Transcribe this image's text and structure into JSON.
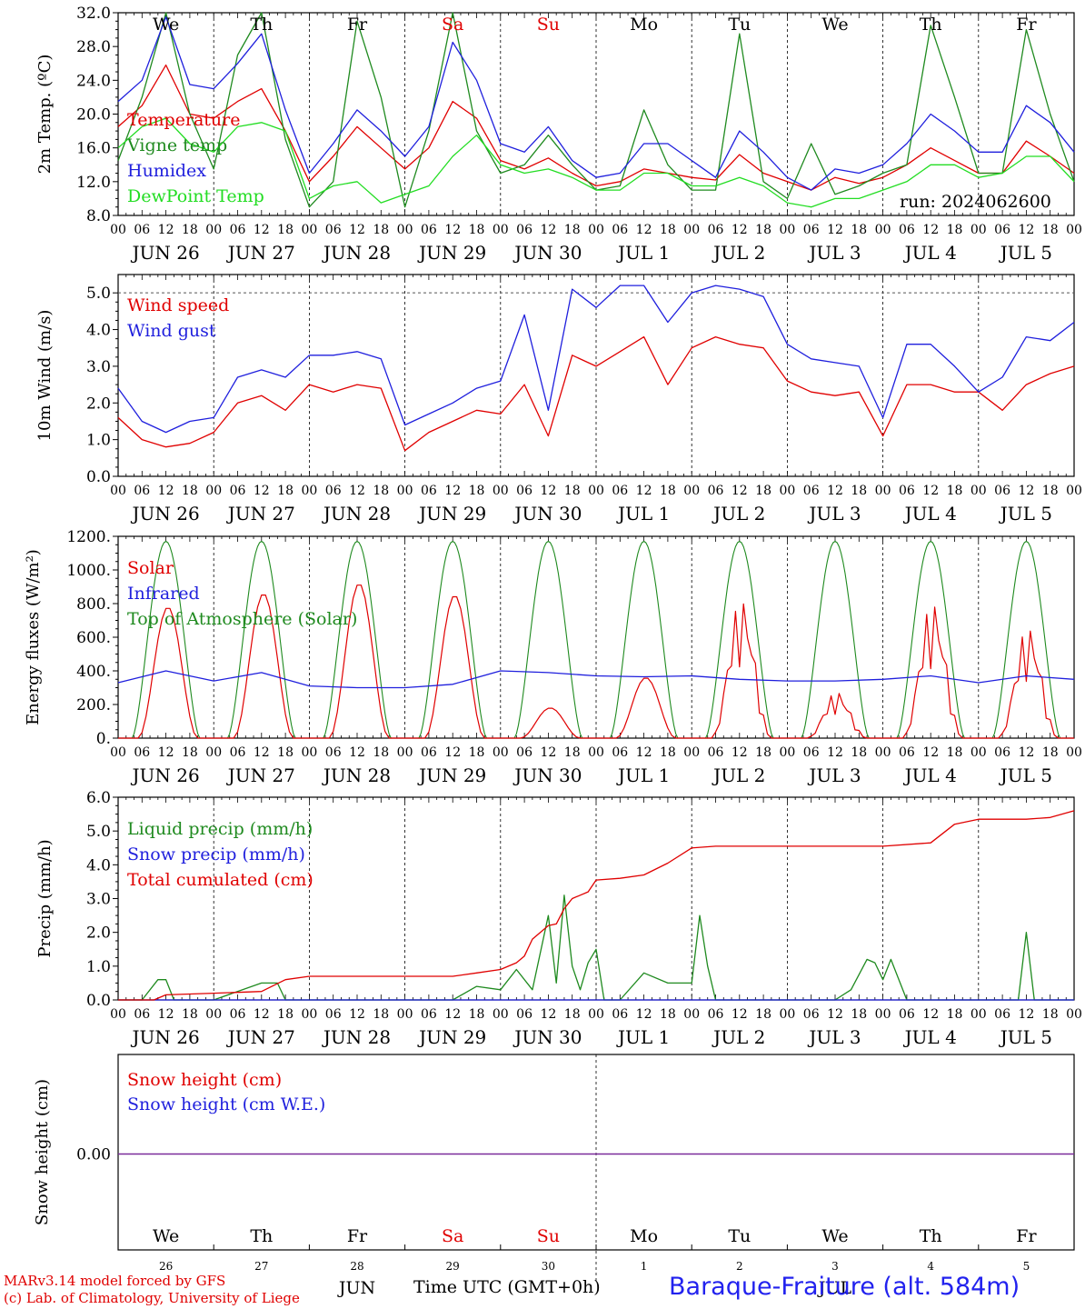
{
  "run_label": "run: 2024062600",
  "station_label": "Baraque-Fraiture (alt. 584m)",
  "x_axis_label": "Time UTC (GMT+0h)",
  "credit_line_1": "MARv3.14 model forced by GFS",
  "credit_line_2": "(c) Lab. of Climatology, University of Liege",
  "weekdays": [
    {
      "label": "We",
      "color": "#000000"
    },
    {
      "label": "Th",
      "color": "#000000"
    },
    {
      "label": "Fr",
      "color": "#000000"
    },
    {
      "label": "Sa",
      "color": "#e00000"
    },
    {
      "label": "Su",
      "color": "#e00000"
    },
    {
      "label": "Mo",
      "color": "#000000"
    },
    {
      "label": "Tu",
      "color": "#000000"
    },
    {
      "label": "We",
      "color": "#000000"
    },
    {
      "label": "Th",
      "color": "#000000"
    },
    {
      "label": "Fr",
      "color": "#000000"
    }
  ],
  "date_labels": [
    "JUN 26",
    "JUN 27",
    "JUN 28",
    "JUN 29",
    "JUN 30",
    "JUL  1",
    "JUL  2",
    "JUL  3",
    "JUL  4",
    "JUL  5"
  ],
  "hour_ticks": [
    "00",
    "06",
    "12",
    "18"
  ],
  "day_numbers": [
    "26",
    "27",
    "28",
    "29",
    "30",
    "1",
    "2",
    "3",
    "4",
    "5"
  ],
  "month_labels": [
    "JUN",
    "JUL"
  ],
  "colors": {
    "red": "#e00000",
    "green": "#1f8a1f",
    "blue": "#1f1fdd",
    "lightgreen": "#22dd22",
    "purple": "#7a2a9a"
  },
  "chart_data": [
    {
      "type": "line",
      "ylabel": "2m Temp. (ºC)",
      "ylim": [
        8,
        32
      ],
      "yticks": [
        "8.0",
        "12.0",
        "16.0",
        "20.0",
        "24.0",
        "28.0",
        "32.0"
      ],
      "x_unit": "hours since 2024-06-26 00 UTC",
      "series": [
        {
          "name": "Temperature",
          "color": "red",
          "x": [
            0,
            6,
            12,
            18,
            24,
            30,
            36,
            42,
            48,
            54,
            60,
            66,
            72,
            78,
            84,
            90,
            96,
            102,
            108,
            114,
            120,
            126,
            132,
            138,
            144,
            150,
            156,
            162,
            168,
            174,
            180,
            186,
            192,
            198,
            204,
            210,
            216,
            222,
            228,
            234,
            240
          ],
          "values": [
            18.5,
            21,
            25.8,
            20,
            19.5,
            21.5,
            23,
            18,
            12,
            15,
            18.5,
            16,
            13.5,
            16,
            21.5,
            19.5,
            14.5,
            13.5,
            14.8,
            13,
            11.5,
            12,
            13.5,
            13,
            12.5,
            12.2,
            15.2,
            13,
            12,
            11,
            12.5,
            11.8,
            12.5,
            14,
            16,
            14.5,
            13,
            13,
            16.8,
            15,
            13
          ]
        },
        {
          "name": "Vigne temp",
          "color": "green",
          "x": [
            0,
            6,
            12,
            18,
            24,
            30,
            36,
            42,
            48,
            54,
            60,
            66,
            72,
            78,
            84,
            90,
            96,
            102,
            108,
            114,
            120,
            126,
            132,
            138,
            144,
            150,
            156,
            162,
            168,
            174,
            180,
            186,
            192,
            198,
            204,
            210,
            216,
            222,
            228,
            234,
            240
          ],
          "values": [
            14.5,
            22,
            32,
            20,
            13.5,
            27,
            32,
            17,
            9,
            12,
            31,
            22,
            9,
            18,
            33,
            18,
            13,
            14,
            17.5,
            14,
            11,
            11.5,
            20.5,
            14,
            11,
            11,
            29.5,
            12,
            10,
            16.5,
            10.5,
            11.5,
            13,
            14,
            30.5,
            22,
            13,
            13,
            30,
            20,
            12
          ]
        },
        {
          "name": "Humidex",
          "color": "blue",
          "x": [
            0,
            6,
            12,
            18,
            24,
            30,
            36,
            42,
            48,
            54,
            60,
            66,
            72,
            78,
            84,
            90,
            96,
            102,
            108,
            114,
            120,
            126,
            132,
            138,
            144,
            150,
            156,
            162,
            168,
            174,
            180,
            186,
            192,
            198,
            204,
            210,
            216,
            222,
            228,
            234,
            240
          ],
          "values": [
            21.5,
            24,
            31.5,
            23.5,
            23,
            26,
            29.5,
            20.5,
            13,
            16.5,
            20.5,
            18,
            15,
            18.5,
            28.5,
            24,
            16.5,
            15.5,
            18.5,
            14.5,
            12.5,
            13,
            16.5,
            16.5,
            14.5,
            12.5,
            18,
            15.5,
            12.5,
            11,
            13.5,
            13,
            14,
            16.5,
            20,
            18,
            15.5,
            15.5,
            21,
            19,
            15.5
          ]
        },
        {
          "name": "DewPoint Temp",
          "color": "lightgreen",
          "x": [
            0,
            6,
            12,
            18,
            24,
            30,
            36,
            42,
            48,
            54,
            60,
            66,
            72,
            78,
            84,
            90,
            96,
            102,
            108,
            114,
            120,
            126,
            132,
            138,
            144,
            150,
            156,
            162,
            168,
            174,
            180,
            186,
            192,
            198,
            204,
            210,
            216,
            222,
            228,
            234,
            240
          ],
          "values": [
            16,
            18.5,
            19.5,
            16.5,
            15.5,
            18.5,
            19,
            18,
            10,
            11.5,
            12,
            9.5,
            10.5,
            11.5,
            15,
            17.5,
            14,
            13,
            13.5,
            12.5,
            11,
            11,
            13,
            13,
            11.5,
            11.5,
            12.5,
            11.5,
            9.5,
            9,
            10,
            10,
            11,
            12,
            14,
            14,
            12.5,
            13,
            15,
            15,
            12
          ]
        }
      ],
      "day_separators": true
    },
    {
      "type": "line",
      "ylabel": "10m Wind (m/s)",
      "ylim": [
        0,
        5.5
      ],
      "yticks": [
        "0.0",
        "1.0",
        "2.0",
        "3.0",
        "4.0",
        "5.0"
      ],
      "reference_line": 5.0,
      "series": [
        {
          "name": "Wind speed",
          "color": "red",
          "x": [
            0,
            6,
            12,
            18,
            24,
            30,
            36,
            42,
            48,
            54,
            60,
            66,
            72,
            78,
            84,
            90,
            96,
            102,
            108,
            114,
            120,
            126,
            132,
            138,
            144,
            150,
            156,
            162,
            168,
            174,
            180,
            186,
            192,
            198,
            204,
            210,
            216,
            222,
            228,
            234,
            240
          ],
          "values": [
            1.6,
            1,
            0.8,
            0.9,
            1.2,
            2,
            2.2,
            1.8,
            2.5,
            2.3,
            2.5,
            2.4,
            0.7,
            1.2,
            1.5,
            1.8,
            1.7,
            2.5,
            1.1,
            3.3,
            3,
            3.4,
            3.8,
            2.5,
            3.5,
            3.8,
            3.6,
            3.5,
            2.6,
            2.3,
            2.2,
            2.3,
            1.1,
            2.5,
            2.5,
            2.3,
            2.3,
            1.8,
            2.5,
            2.8,
            3
          ]
        },
        {
          "name": "Wind gust",
          "color": "blue",
          "x": [
            0,
            6,
            12,
            18,
            24,
            30,
            36,
            42,
            48,
            54,
            60,
            66,
            72,
            78,
            84,
            90,
            96,
            102,
            108,
            114,
            120,
            126,
            132,
            138,
            144,
            150,
            156,
            162,
            168,
            174,
            180,
            186,
            192,
            198,
            204,
            210,
            216,
            222,
            228,
            234,
            240
          ],
          "values": [
            2.4,
            1.5,
            1.2,
            1.5,
            1.6,
            2.7,
            2.9,
            2.7,
            3.3,
            3.3,
            3.4,
            3.2,
            1.4,
            1.7,
            2,
            2.4,
            2.6,
            4.4,
            1.8,
            5.1,
            4.6,
            5.2,
            5.2,
            4.2,
            5,
            5.2,
            5.1,
            4.9,
            3.6,
            3.2,
            3.1,
            3,
            1.6,
            3.6,
            3.6,
            3,
            2.3,
            2.7,
            3.8,
            3.7,
            4.2
          ]
        }
      ]
    },
    {
      "type": "line",
      "ylabel": "Energy fluxes (W/m²)",
      "ylim": [
        0,
        1200
      ],
      "yticks": [
        "0.",
        "200.",
        "400.",
        "600.",
        "800.",
        "1000.",
        "1200."
      ],
      "series": [
        {
          "name": "Solar",
          "color": "red",
          "day_peaks": [
            780,
            860,
            920,
            850,
            180,
            360,
            840,
            280,
            820,
            670
          ]
        },
        {
          "name": "Infrared",
          "color": "blue",
          "x": [
            0,
            12,
            24,
            36,
            48,
            60,
            72,
            84,
            96,
            108,
            120,
            132,
            144,
            156,
            168,
            180,
            192,
            204,
            216,
            228,
            240
          ],
          "values": [
            330,
            400,
            340,
            390,
            310,
            300,
            300,
            320,
            400,
            390,
            370,
            365,
            370,
            350,
            340,
            340,
            350,
            370,
            330,
            370,
            350
          ]
        },
        {
          "name": "Top of Atmosphere (Solar)",
          "color": "green",
          "day_peaks": [
            1170,
            1170,
            1170,
            1170,
            1170,
            1170,
            1170,
            1170,
            1170,
            1170
          ]
        }
      ]
    },
    {
      "type": "line",
      "ylabel": "Precip (mm/h)",
      "ylim": [
        0,
        6
      ],
      "yticks": [
        "0.0",
        "1.0",
        "2.0",
        "3.0",
        "4.0",
        "5.0",
        "6.0"
      ],
      "series": [
        {
          "name": "Liquid precip (mm/h)",
          "color": "green",
          "x": [
            0,
            6,
            10,
            12,
            14,
            18,
            24,
            36,
            40,
            42,
            48,
            60,
            84,
            90,
            96,
            100,
            104,
            108,
            110,
            112,
            114,
            116,
            118,
            120,
            122,
            126,
            132,
            138,
            144,
            146,
            148,
            150,
            152,
            156,
            174,
            180,
            184,
            188,
            190,
            192,
            194,
            198,
            204,
            210,
            216,
            226,
            228,
            230,
            240
          ],
          "values": [
            0,
            0,
            0.6,
            0.6,
            0,
            0,
            0,
            0.5,
            0.5,
            0,
            0,
            0,
            0,
            0.4,
            0.3,
            0.9,
            0.3,
            2.5,
            0.5,
            3.1,
            1,
            0.3,
            1.1,
            1.5,
            0,
            0,
            0.8,
            0.5,
            0.5,
            2.5,
            1,
            0,
            0,
            0,
            0,
            0,
            0.3,
            1.2,
            1.1,
            0.6,
            1.2,
            0,
            0,
            0,
            0,
            0,
            2,
            0,
            0
          ]
        },
        {
          "name": "Snow precip (mm/h)",
          "color": "blue",
          "x": [
            0,
            240
          ],
          "values": [
            0,
            0
          ]
        },
        {
          "name": "Total cumulated (cm)",
          "color": "red",
          "x": [
            0,
            9,
            12,
            24,
            36,
            42,
            48,
            60,
            72,
            84,
            90,
            96,
            100,
            102,
            104,
            108,
            110,
            112,
            114,
            116,
            118,
            120,
            126,
            132,
            138,
            144,
            150,
            156,
            168,
            180,
            192,
            204,
            210,
            216,
            228,
            234,
            240
          ],
          "values": [
            0,
            0,
            0.15,
            0.2,
            0.25,
            0.6,
            0.7,
            0.7,
            0.7,
            0.7,
            0.8,
            0.9,
            1.1,
            1.3,
            1.8,
            2.2,
            2.25,
            2.7,
            3,
            3.1,
            3.2,
            3.55,
            3.6,
            3.7,
            4.05,
            4.5,
            4.55,
            4.55,
            4.55,
            4.55,
            4.55,
            4.65,
            5.2,
            5.35,
            5.35,
            5.4,
            5.6
          ]
        }
      ]
    },
    {
      "type": "line",
      "ylabel": "Snow height (cm)",
      "yticks": [
        "0.00"
      ],
      "series": [
        {
          "name": "Snow height (cm)",
          "color": "red",
          "values": [
            0,
            0
          ]
        },
        {
          "name": "Snow height (cm W.E.)",
          "color": "blue",
          "values": [
            0,
            0
          ]
        }
      ]
    }
  ]
}
